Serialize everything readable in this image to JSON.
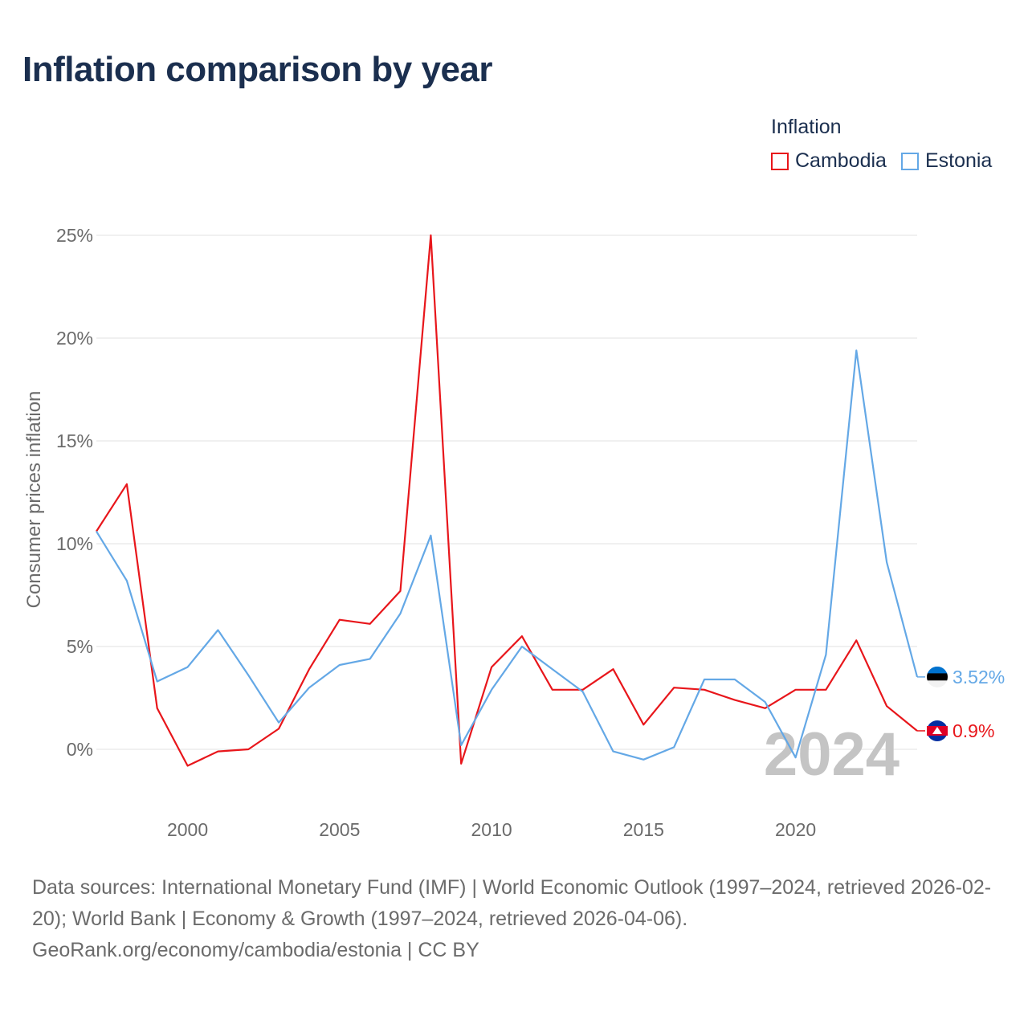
{
  "title": "Inflation comparison by year",
  "legend": {
    "title": "Inflation",
    "items": [
      {
        "label": "Cambodia",
        "color": "#e8161b"
      },
      {
        "label": "Estonia",
        "color": "#64a8e6"
      }
    ]
  },
  "chart_data": {
    "type": "line",
    "title": "Inflation comparison by year",
    "xlabel": "",
    "ylabel": "Consumer prices inflation",
    "x": [
      1997,
      1998,
      1999,
      2000,
      2001,
      2002,
      2003,
      2004,
      2005,
      2006,
      2007,
      2008,
      2009,
      2010,
      2011,
      2012,
      2013,
      2014,
      2015,
      2016,
      2017,
      2018,
      2019,
      2020,
      2021,
      2022,
      2023,
      2024
    ],
    "xlim": [
      1997,
      2024
    ],
    "ylim": [
      -3,
      25
    ],
    "x_ticks": [
      {
        "value": 2000,
        "label": "2000"
      },
      {
        "value": 2005,
        "label": "2005"
      },
      {
        "value": 2010,
        "label": "2010"
      },
      {
        "value": 2015,
        "label": "2015"
      },
      {
        "value": 2020,
        "label": "2020"
      }
    ],
    "y_ticks": [
      {
        "value": 0,
        "label": "0%"
      },
      {
        "value": 5,
        "label": "5%"
      },
      {
        "value": 10,
        "label": "10%"
      },
      {
        "value": 15,
        "label": "15%"
      },
      {
        "value": 20,
        "label": "20%"
      },
      {
        "value": 25,
        "label": "25%"
      }
    ],
    "grid": true,
    "series": [
      {
        "name": "Cambodia",
        "color": "#e8161b",
        "end_label": "0.9%",
        "values": [
          10.6,
          12.9,
          2.0,
          -0.8,
          -0.1,
          0.0,
          1.0,
          3.9,
          6.3,
          6.1,
          7.7,
          25.0,
          -0.7,
          4.0,
          5.5,
          2.9,
          2.9,
          3.9,
          1.2,
          3.0,
          2.9,
          2.4,
          2.0,
          2.9,
          2.9,
          5.3,
          2.1,
          0.9
        ]
      },
      {
        "name": "Estonia",
        "color": "#64a8e6",
        "end_label": "3.52%",
        "values": [
          10.6,
          8.2,
          3.3,
          4.0,
          5.8,
          3.6,
          1.3,
          3.0,
          4.1,
          4.4,
          6.6,
          10.4,
          0.2,
          2.9,
          5.0,
          3.9,
          2.8,
          -0.1,
          -0.5,
          0.1,
          3.4,
          3.4,
          2.3,
          -0.4,
          4.6,
          19.4,
          9.1,
          3.52
        ]
      }
    ],
    "year_watermark": "2024"
  },
  "source": {
    "line1": "Data sources: International Monetary Fund (IMF) | World Economic Outlook (1997–2024, retrieved 2026-02-20); World Bank | Economy & Growth (1997–2024, retrieved 2026-04-06).",
    "line2": "GeoRank.org/economy/cambodia/estonia | CC BY"
  }
}
